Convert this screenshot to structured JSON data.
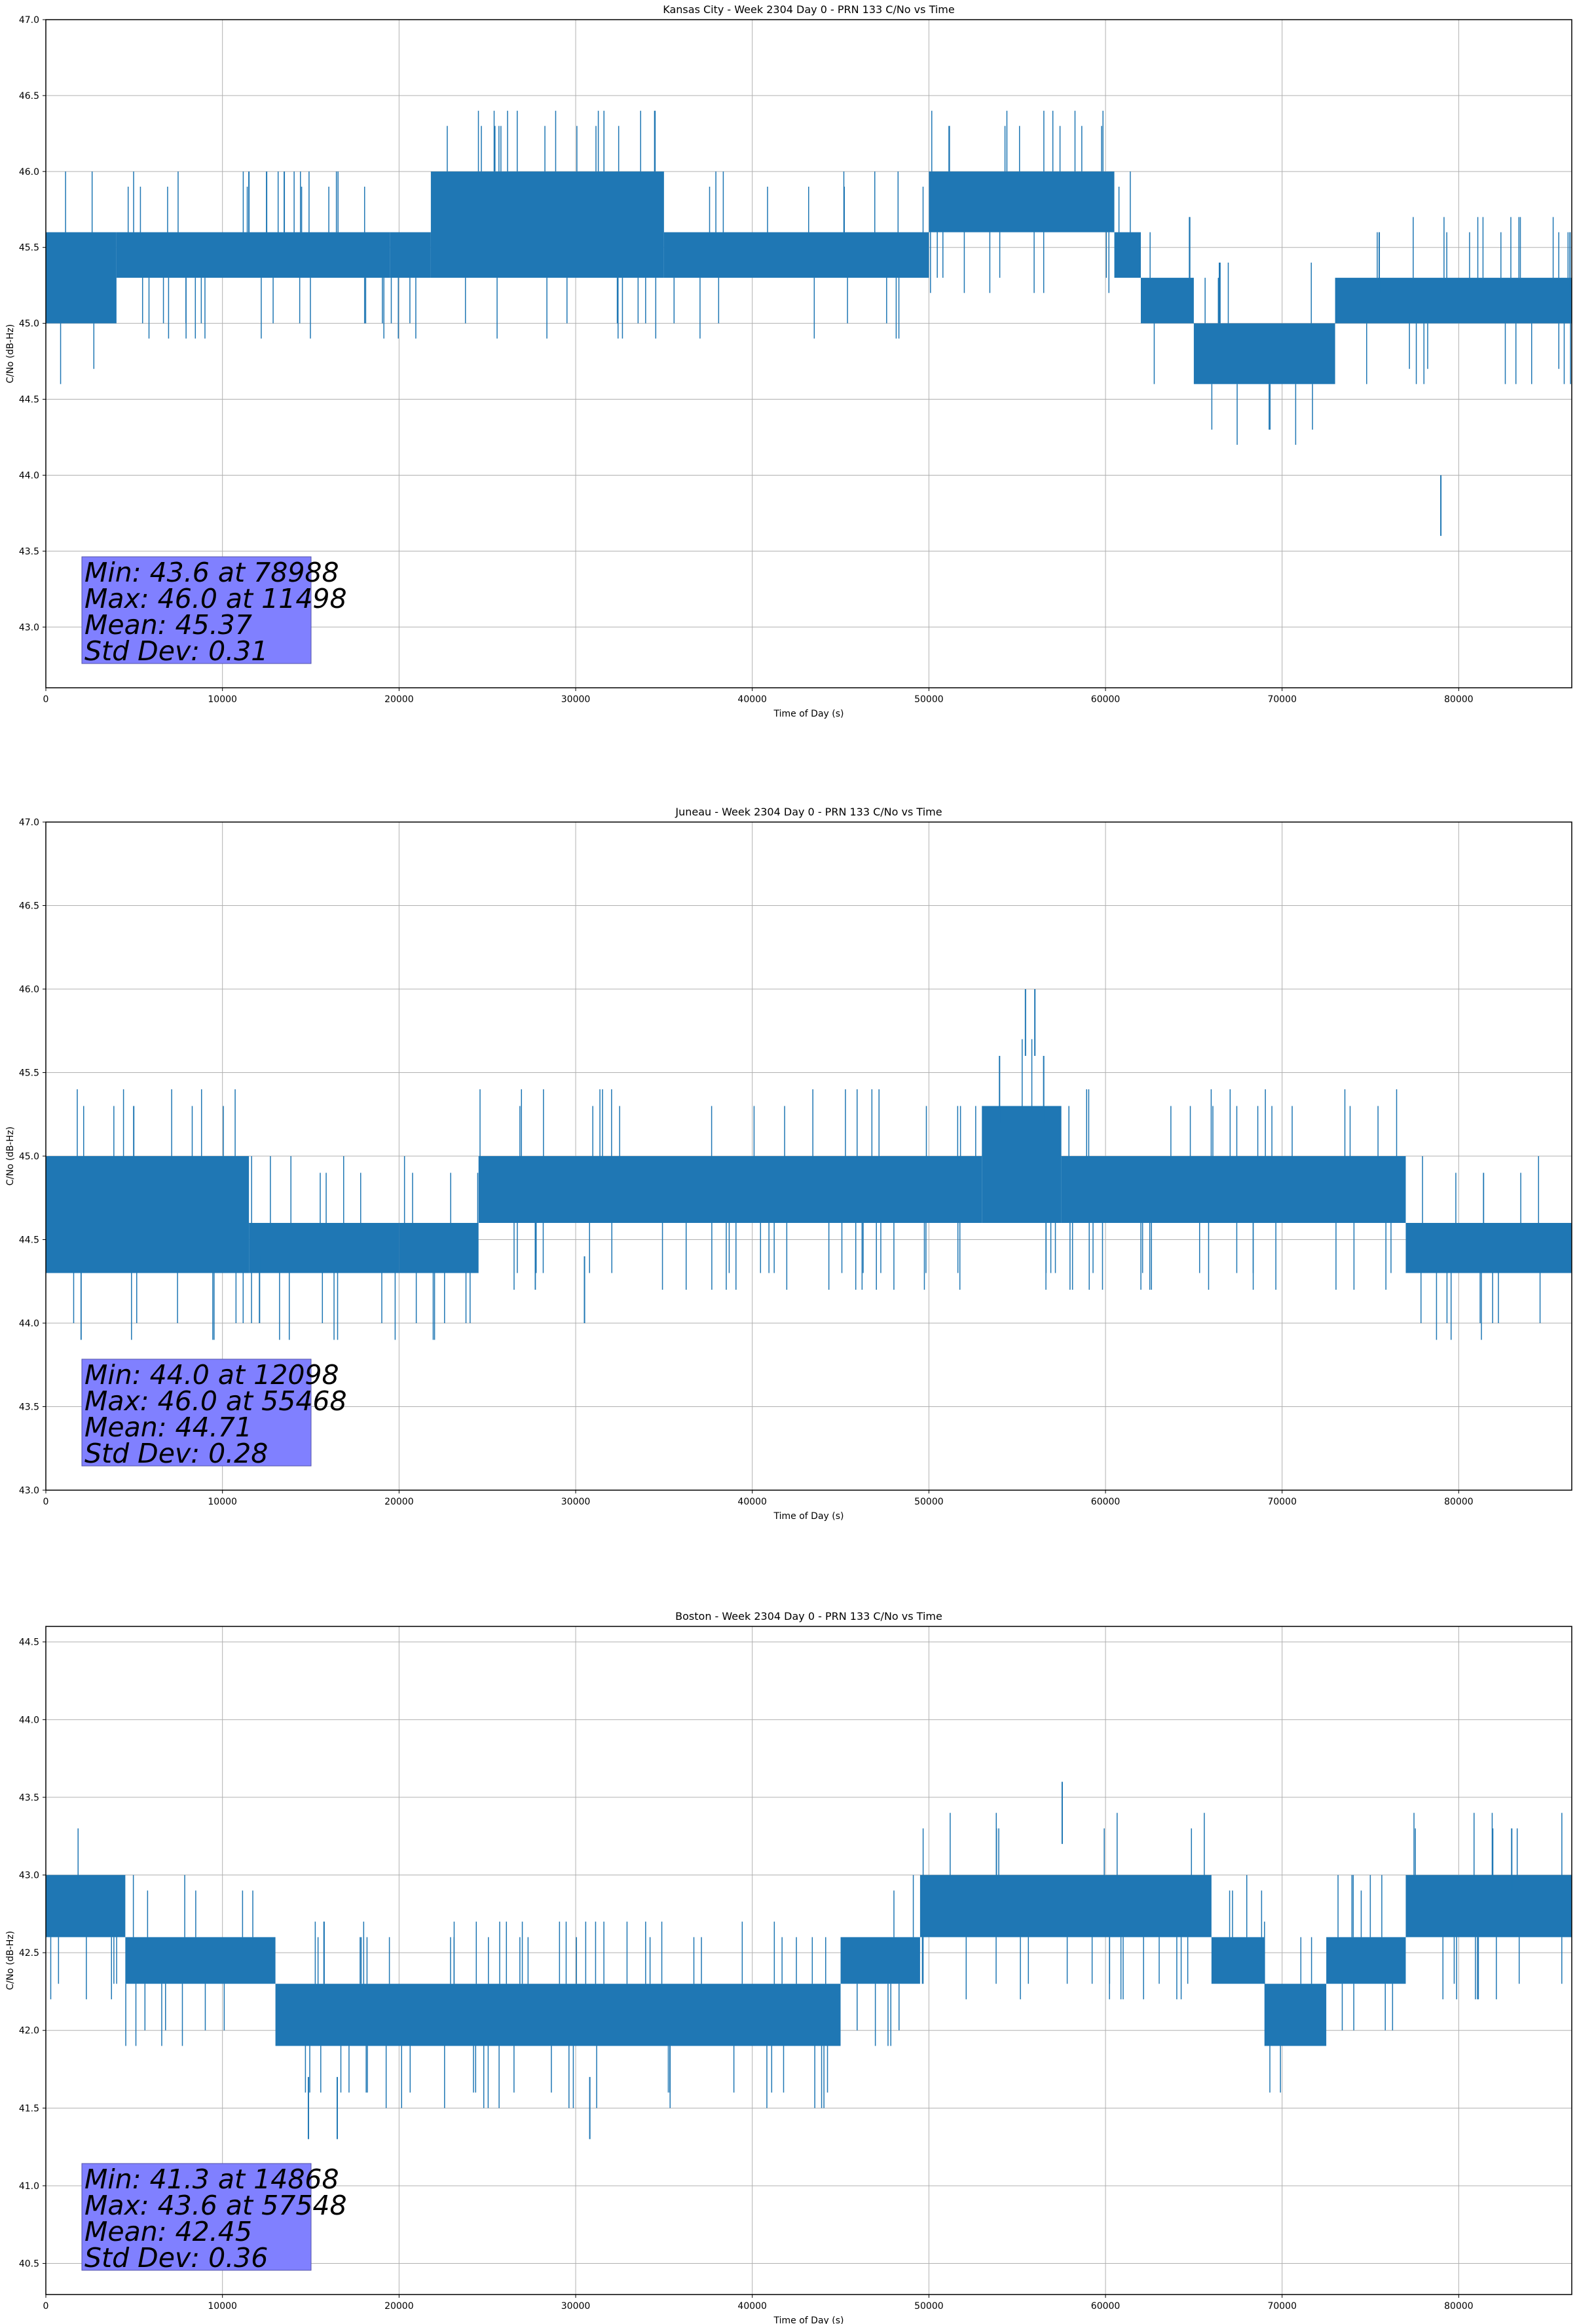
{
  "chart_data": [
    {
      "type": "line",
      "title": "Kansas City - Week 2304 Day 0 - PRN 133 C/No vs Time",
      "xlabel": "Time of Day (s)",
      "ylabel": "C/No (dB-Hz)",
      "xlim": [
        0,
        86400
      ],
      "ylim": [
        42.6,
        47.0
      ],
      "xticks": [
        0,
        10000,
        20000,
        30000,
        40000,
        50000,
        60000,
        70000,
        80000
      ],
      "yticks": [
        43.0,
        43.5,
        44.0,
        44.5,
        45.0,
        45.5,
        46.0,
        46.5,
        47.0
      ],
      "xtick_labels": [
        "0",
        "10000",
        "20000",
        "30000",
        "40000",
        "50000",
        "60000",
        "70000",
        "80000"
      ],
      "ytick_labels": [
        "43.0",
        "43.5",
        "44.0",
        "44.5",
        "45.0",
        "45.5",
        "46.0",
        "46.5",
        "47.0"
      ],
      "grid": true,
      "series_color": "#1f77b4",
      "series": [
        {
          "segments": [
            {
              "x": [
                0,
                4000
              ],
              "band": [
                45.0,
                45.6
              ]
            },
            {
              "x": [
                4000,
                19500
              ],
              "band": [
                45.3,
                45.6
              ]
            },
            {
              "x": [
                19500,
                21800
              ],
              "band": [
                45.3,
                45.6
              ]
            },
            {
              "x": [
                21800,
                35000
              ],
              "band": [
                45.3,
                46.0
              ]
            },
            {
              "x": [
                35000,
                50000
              ],
              "band": [
                45.3,
                45.6
              ]
            },
            {
              "x": [
                50000,
                60500
              ],
              "band": [
                45.6,
                46.0
              ]
            },
            {
              "x": [
                60500,
                62000
              ],
              "band": [
                45.3,
                45.6
              ]
            },
            {
              "x": [
                62000,
                65000
              ],
              "band": [
                45.0,
                45.3
              ]
            },
            {
              "x": [
                65000,
                73000
              ],
              "band": [
                44.6,
                45.0
              ]
            },
            {
              "x": [
                73000,
                86400
              ],
              "band": [
                45.0,
                45.3
              ]
            }
          ],
          "spikes": [
            {
              "x": 11498,
              "y": 46.0
            },
            {
              "x": 12500,
              "y": 46.0
            },
            {
              "x": 13500,
              "y": 46.0
            },
            {
              "x": 75500,
              "y": 45.6
            },
            {
              "x": 78988,
              "y": 43.6
            },
            {
              "x": 86300,
              "y": 45.6
            }
          ]
        }
      ],
      "stats": {
        "min_label": "Min: 43.6 at 78988",
        "max_label": "Max: 46.0 at 11498",
        "mean_label": "Mean: 45.37",
        "std_label": "Std Dev: 0.31"
      }
    },
    {
      "type": "line",
      "title": "Juneau - Week 2304 Day 0 - PRN 133 C/No vs Time",
      "xlabel": "Time of Day (s)",
      "ylabel": "C/No (dB-Hz)",
      "xlim": [
        0,
        86400
      ],
      "ylim": [
        43.0,
        47.0
      ],
      "xticks": [
        0,
        10000,
        20000,
        30000,
        40000,
        50000,
        60000,
        70000,
        80000
      ],
      "yticks": [
        43.0,
        43.5,
        44.0,
        44.5,
        45.0,
        45.5,
        46.0,
        46.5,
        47.0
      ],
      "xtick_labels": [
        "0",
        "10000",
        "20000",
        "30000",
        "40000",
        "50000",
        "60000",
        "70000",
        "80000"
      ],
      "ytick_labels": [
        "43.0",
        "43.5",
        "44.0",
        "44.5",
        "45.0",
        "45.5",
        "46.0",
        "46.5",
        "47.0"
      ],
      "grid": true,
      "series_color": "#1f77b4",
      "series": [
        {
          "segments": [
            {
              "x": [
                0,
                11500
              ],
              "band": [
                44.3,
                45.0
              ]
            },
            {
              "x": [
                11500,
                20000
              ],
              "band": [
                44.3,
                44.6
              ]
            },
            {
              "x": [
                20000,
                24500
              ],
              "band": [
                44.3,
                44.6
              ]
            },
            {
              "x": [
                24500,
                53000
              ],
              "band": [
                44.6,
                45.0
              ]
            },
            {
              "x": [
                53000,
                57500
              ],
              "band": [
                44.6,
                45.3
              ]
            },
            {
              "x": [
                57500,
                77000
              ],
              "band": [
                44.6,
                45.0
              ]
            },
            {
              "x": [
                77000,
                86400
              ],
              "band": [
                44.3,
                44.6
              ]
            }
          ],
          "spikes": [
            {
              "x": 12098,
              "y": 44.0
            },
            {
              "x": 30500,
              "y": 44.0
            },
            {
              "x": 54000,
              "y": 45.6
            },
            {
              "x": 55468,
              "y": 46.0
            },
            {
              "x": 56000,
              "y": 46.0
            },
            {
              "x": 56500,
              "y": 45.6
            }
          ]
        }
      ],
      "stats": {
        "min_label": "Min: 44.0 at 12098",
        "max_label": "Max: 46.0 at 55468",
        "mean_label": "Mean: 44.71",
        "std_label": "Std Dev: 0.28"
      }
    },
    {
      "type": "line",
      "title": "Boston - Week 2304 Day 0 - PRN 133 C/No vs Time",
      "xlabel": "Time of Day (s)",
      "ylabel": "C/No (dB-Hz)",
      "xlim": [
        0,
        86400
      ],
      "ylim": [
        40.3,
        44.6
      ],
      "xticks": [
        0,
        10000,
        20000,
        30000,
        40000,
        50000,
        60000,
        70000,
        80000
      ],
      "yticks": [
        40.5,
        41.0,
        41.5,
        42.0,
        42.5,
        43.0,
        43.5,
        44.0,
        44.5
      ],
      "xtick_labels": [
        "0",
        "10000",
        "20000",
        "30000",
        "40000",
        "50000",
        "60000",
        "70000",
        "80000"
      ],
      "ytick_labels": [
        "40.5",
        "41.0",
        "41.5",
        "42.0",
        "42.5",
        "43.0",
        "43.5",
        "44.0",
        "44.5"
      ],
      "grid": true,
      "series_color": "#1f77b4",
      "series": [
        {
          "segments": [
            {
              "x": [
                0,
                4500
              ],
              "band": [
                42.6,
                43.0
              ]
            },
            {
              "x": [
                4500,
                13000
              ],
              "band": [
                42.3,
                42.6
              ]
            },
            {
              "x": [
                13000,
                45000
              ],
              "band": [
                41.9,
                42.3
              ]
            },
            {
              "x": [
                45000,
                49500
              ],
              "band": [
                42.3,
                42.6
              ]
            },
            {
              "x": [
                49500,
                66000
              ],
              "band": [
                42.6,
                43.0
              ]
            },
            {
              "x": [
                66000,
                69000
              ],
              "band": [
                42.3,
                42.6
              ]
            },
            {
              "x": [
                69000,
                72500
              ],
              "band": [
                41.9,
                42.3
              ]
            },
            {
              "x": [
                72500,
                77000
              ],
              "band": [
                42.3,
                42.6
              ]
            },
            {
              "x": [
                77000,
                86400
              ],
              "band": [
                42.6,
                43.0
              ]
            }
          ],
          "spikes": [
            {
              "x": 14868,
              "y": 41.3
            },
            {
              "x": 16500,
              "y": 41.3
            },
            {
              "x": 30800,
              "y": 41.3
            },
            {
              "x": 57548,
              "y": 43.6
            },
            {
              "x": 83000,
              "y": 43.3
            }
          ]
        }
      ],
      "stats": {
        "min_label": "Min: 41.3 at 14868",
        "max_label": "Max: 43.6 at 57548",
        "mean_label": "Mean: 42.45",
        "std_label": "Std Dev: 0.36"
      }
    }
  ]
}
